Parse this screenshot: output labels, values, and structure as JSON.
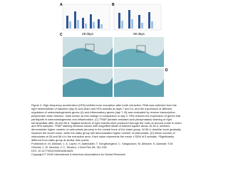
{
  "figure": {
    "panel_labels": [
      "A",
      "B",
      "C",
      "D"
    ],
    "time_labels": [
      "28 days",
      "56 days"
    ]
  },
  "caption": "Figure 4. High-frequency acceleration (HFA) inhibits bone resorption after tooth extraction. RNA was collected from the right hemimaxillae of baseline (day 0) and sham and HFA animals at days 7 and 14, and the expression of different regulators of osteoclastogenesis genes (A) and inflammatory genes (day 7; B) was evaluated by reverse transcription polymerase chain reaction. Data shown as fold change in comparison to day 0. HFA reduces the expression of genes that participate in osteoclastogenesis and inflammation. (C) TRAP (tartrate-resistant acid phosphatase) staining of right hemimaxillae after 28 and 56 d. Sagittal sections of right maxilla were produced through the roots of second molar in sham and HFA samples. TRAP staining sections shown with magnified detail of marked square areas. At 28 d, sections demonstrate higher number of osteoclasts (arrows) in the crestal bone of the sham group. At 56 d, lamellar bone gradually replaces the woven bone, while the static group still demonstrated higher number of osteoclasts. (D) Mean number of osteoclasts at 28 and 56 d in the extraction area. Each value represents the mean ± SEM of 5 animals. *Significantly different from static group at similar time points.",
  "citation": {
    "published": "Published in: M. Alikhani; J. A. Lopez; H. Alabdullah; T. Vongthongleur; C. Sangsuwon; M. Alikhani; S. Alansari; S.M. Oliveira; J. M. Nervina; C.C. Teixeira; J Dent Res 98, 311-318",
    "doi": "DOI: 10.1177/0022034518814625",
    "copyright": "Copyright © 2018 International & American Associations for Dental Research"
  }
}
